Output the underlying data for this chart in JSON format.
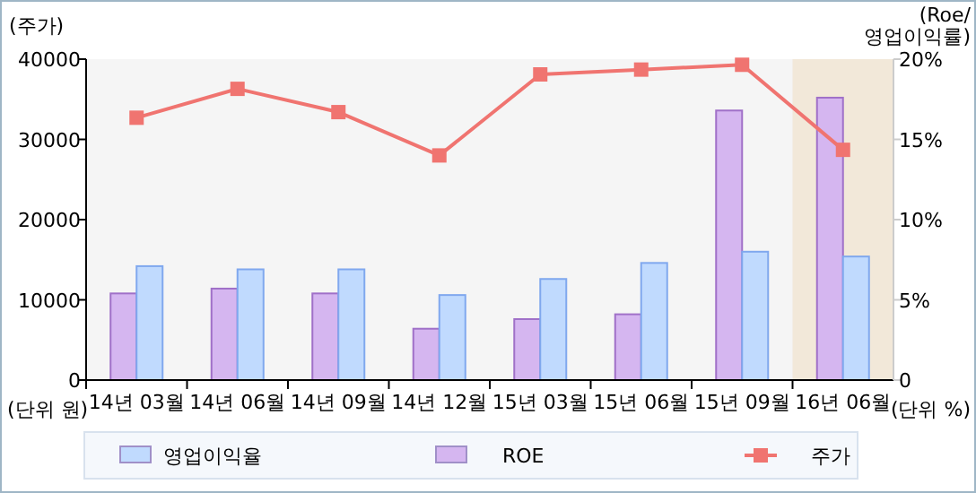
{
  "chart_data": {
    "type": "bar",
    "ylabel": "(주가)",
    "y2label": "(Roe/\n영업이익률)",
    "categories": [
      "14년 03월",
      "14년 06월",
      "14년 09월",
      "14년 12월",
      "15년 03월",
      "15년 06월",
      "15년 09월",
      "16년 06월"
    ],
    "series": [
      {
        "name": "영업이익율",
        "color": "#c0dafe",
        "axis": "y2",
        "values": [
          7.1,
          6.9,
          6.9,
          5.3,
          6.3,
          7.3,
          8.0,
          7.7
        ]
      },
      {
        "name": "ROE",
        "color": "#d5b6f0",
        "axis": "y2",
        "values": [
          5.4,
          5.7,
          5.4,
          3.2,
          3.8,
          4.1,
          16.8,
          17.6
        ]
      },
      {
        "name": "주가",
        "type": "line",
        "color": "#f07470",
        "marker": "square",
        "values": [
          32700,
          36300,
          33400,
          28000,
          38100,
          38700,
          39300,
          28700
        ]
      }
    ],
    "ylim": [
      0,
      40000
    ],
    "yticks": [
      0,
      10000,
      20000,
      30000,
      40000
    ],
    "y2lim": [
      0,
      20
    ],
    "y2ticks": [
      0,
      {
        "value": 5,
        "label": "5%"
      },
      {
        "value": 10,
        "label": "10%"
      },
      {
        "value": 15,
        "label": "15%"
      },
      {
        "value": 20,
        "label": "20%"
      }
    ],
    "bands": [
      {
        "axis": "x",
        "from": "16년 06월",
        "to": "16년 06월",
        "color": "#f2e8d9"
      }
    ],
    "annotations": [
      "(단위 원)",
      "(단위 %)"
    ],
    "legend": "bottom"
  }
}
